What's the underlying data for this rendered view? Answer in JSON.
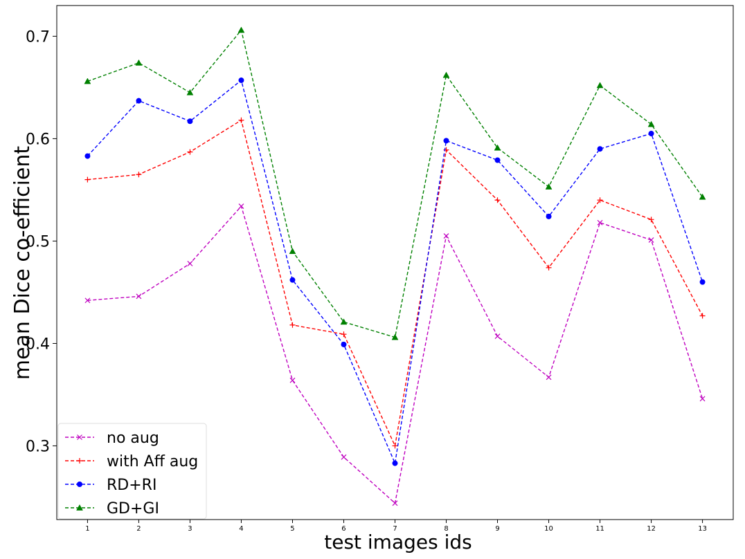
{
  "chart_data": {
    "type": "line",
    "title": "",
    "xlabel": "test images ids",
    "ylabel": "mean Dice co-efficient",
    "x": [
      1,
      2,
      3,
      4,
      5,
      6,
      7,
      8,
      9,
      10,
      11,
      12,
      13
    ],
    "x_ticks": [
      "1",
      "2",
      "3",
      "4",
      "5",
      "6",
      "7",
      "8",
      "9",
      "10",
      "11",
      "12",
      "13"
    ],
    "y_ticks": [
      "0.3",
      "0.4",
      "0.5",
      "0.6",
      "0.7"
    ],
    "y_tick_values": [
      0.3,
      0.4,
      0.5,
      0.6,
      0.7
    ],
    "xlim": [
      0.4,
      13.6
    ],
    "ylim": [
      0.228,
      0.73
    ],
    "grid": false,
    "legend_position": "lower-left",
    "series": [
      {
        "name": "no aug",
        "color": "#bf00bf",
        "marker": "x",
        "linestyle": "dashed",
        "values": [
          0.442,
          0.446,
          0.478,
          0.534,
          0.364,
          0.289,
          0.244,
          0.505,
          0.407,
          0.367,
          0.518,
          0.501,
          0.346
        ]
      },
      {
        "name": "with Aff aug",
        "color": "#ff0000",
        "marker": "+",
        "linestyle": "dashed",
        "values": [
          0.56,
          0.565,
          0.587,
          0.618,
          0.418,
          0.409,
          0.3,
          0.589,
          0.54,
          0.474,
          0.54,
          0.521,
          0.427
        ]
      },
      {
        "name": "RD+RI",
        "color": "#0000ff",
        "marker": "circle",
        "linestyle": "dashed",
        "values": [
          0.583,
          0.637,
          0.617,
          0.657,
          0.462,
          0.399,
          0.283,
          0.598,
          0.579,
          0.524,
          0.59,
          0.605,
          0.46
        ]
      },
      {
        "name": "GD+GI",
        "color": "#008000",
        "marker": "triangle",
        "linestyle": "dashed",
        "values": [
          0.656,
          0.674,
          0.645,
          0.706,
          0.49,
          0.421,
          0.406,
          0.662,
          0.591,
          0.553,
          0.652,
          0.614,
          0.543
        ]
      }
    ]
  }
}
